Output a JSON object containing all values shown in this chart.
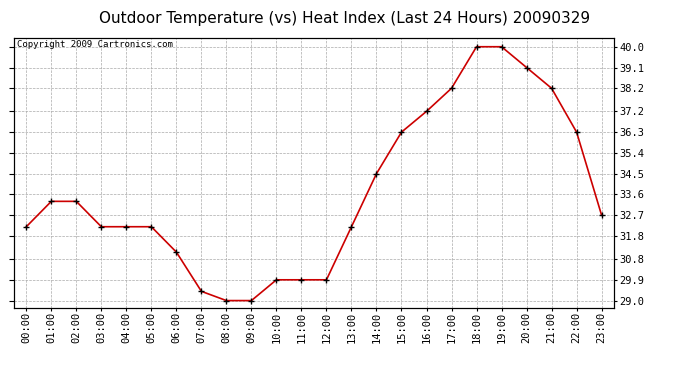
{
  "title": "Outdoor Temperature (vs) Heat Index (Last 24 Hours) 20090329",
  "copyright": "Copyright 2009 Cartronics.com",
  "x_labels": [
    "00:00",
    "01:00",
    "02:00",
    "03:00",
    "04:00",
    "05:00",
    "06:00",
    "07:00",
    "08:00",
    "09:00",
    "10:00",
    "11:00",
    "12:00",
    "13:00",
    "14:00",
    "15:00",
    "16:00",
    "17:00",
    "18:00",
    "19:00",
    "20:00",
    "21:00",
    "22:00",
    "23:00"
  ],
  "y_values": [
    32.2,
    33.3,
    33.3,
    32.2,
    32.2,
    32.2,
    31.1,
    29.4,
    29.0,
    29.0,
    29.9,
    29.9,
    29.9,
    32.2,
    34.5,
    36.3,
    37.2,
    38.2,
    40.0,
    40.0,
    39.1,
    38.2,
    36.3,
    32.7
  ],
  "y_ticks": [
    29.0,
    29.9,
    30.8,
    31.8,
    32.7,
    33.6,
    34.5,
    35.4,
    36.3,
    37.2,
    38.2,
    39.1,
    40.0
  ],
  "y_min": 28.7,
  "y_max": 40.4,
  "line_color": "#cc0000",
  "marker": "+",
  "marker_color": "#000000",
  "grid_color": "#aaaaaa",
  "bg_color": "#ffffff",
  "title_fontsize": 11,
  "copyright_fontsize": 6.5,
  "tick_fontsize": 7.5
}
